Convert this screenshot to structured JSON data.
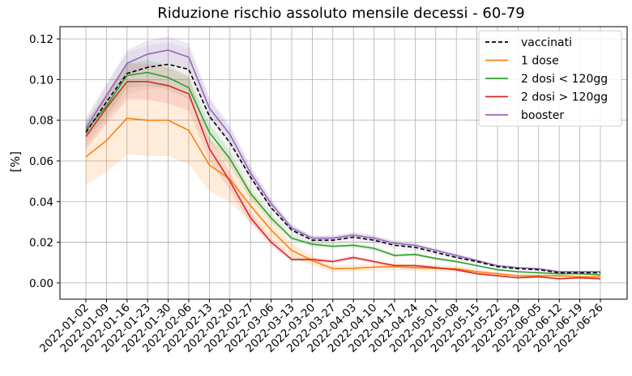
{
  "chart_data": {
    "type": "line",
    "title": "Riduzione rischio assoluto mensile decessi - 60-79",
    "xlabel": "",
    "ylabel": "[%]",
    "grid": true,
    "legend_position": "top-right",
    "ylim": [
      -0.008,
      0.126
    ],
    "yticks": [
      0.0,
      0.02,
      0.04,
      0.06,
      0.08,
      0.1,
      0.12
    ],
    "ytick_labels": [
      "0.00",
      "0.02",
      "0.04",
      "0.06",
      "0.08",
      "0.10",
      "0.12"
    ],
    "categories": [
      "2022-01-02",
      "2022-01-09",
      "2022-01-16",
      "2022-01-23",
      "2022-01-30",
      "2022-02-06",
      "2022-02-13",
      "2022-02-20",
      "2022-02-27",
      "2022-03-06",
      "2022-03-13",
      "2022-03-20",
      "2022-03-27",
      "2022-04-03",
      "2022-04-10",
      "2022-04-17",
      "2022-04-24",
      "2022-05-01",
      "2022-05-08",
      "2022-05-15",
      "2022-05-22",
      "2022-05-29",
      "2022-06-05",
      "2022-06-12",
      "2022-06-19",
      "2022-06-26"
    ],
    "series": [
      {
        "name": "vaccinati",
        "color": "#000000",
        "dashed": true,
        "values": [
          0.074,
          0.089,
          0.103,
          0.106,
          0.1075,
          0.105,
          0.082,
          0.069,
          0.052,
          0.037,
          0.026,
          0.021,
          0.021,
          0.0225,
          0.021,
          0.0185,
          0.0175,
          0.015,
          0.0125,
          0.0105,
          0.008,
          0.007,
          0.0065,
          0.005,
          0.005,
          0.005
        ]
      },
      {
        "name": "1 dose",
        "color": "#ff7f0e",
        "dashed": false,
        "values": [
          0.062,
          0.07,
          0.081,
          0.08,
          0.08,
          0.075,
          0.058,
          0.051,
          0.038,
          0.026,
          0.016,
          0.011,
          0.007,
          0.0072,
          0.0078,
          0.008,
          0.0075,
          0.0072,
          0.007,
          0.0055,
          0.0045,
          0.0035,
          0.0035,
          0.0035,
          0.003,
          0.003
        ]
      },
      {
        "name": "2 dosi < 120gg",
        "color": "#2ca02c",
        "dashed": false,
        "values": [
          0.075,
          0.087,
          0.102,
          0.1035,
          0.101,
          0.096,
          0.074,
          0.061,
          0.044,
          0.032,
          0.022,
          0.019,
          0.018,
          0.0185,
          0.017,
          0.0135,
          0.014,
          0.012,
          0.0105,
          0.0085,
          0.0065,
          0.0055,
          0.005,
          0.0045,
          0.0045,
          0.004
        ]
      },
      {
        "name": "2 dosi > 120gg",
        "color": "#d62728",
        "dashed": false,
        "values": [
          0.072,
          0.086,
          0.099,
          0.099,
          0.097,
          0.093,
          0.066,
          0.05,
          0.032,
          0.02,
          0.0115,
          0.0115,
          0.0105,
          0.0125,
          0.0105,
          0.0085,
          0.0085,
          0.0075,
          0.0065,
          0.0045,
          0.0035,
          0.0025,
          0.003,
          0.002,
          0.0025,
          0.002
        ]
      },
      {
        "name": "booster",
        "color": "#9467bd",
        "dashed": false,
        "values": [
          0.076,
          0.092,
          0.108,
          0.1125,
          0.1145,
          0.111,
          0.086,
          0.073,
          0.054,
          0.039,
          0.027,
          0.022,
          0.022,
          0.0235,
          0.022,
          0.0195,
          0.0185,
          0.016,
          0.0135,
          0.011,
          0.0085,
          0.0075,
          0.007,
          0.0055,
          0.0055,
          0.0055
        ]
      }
    ]
  }
}
